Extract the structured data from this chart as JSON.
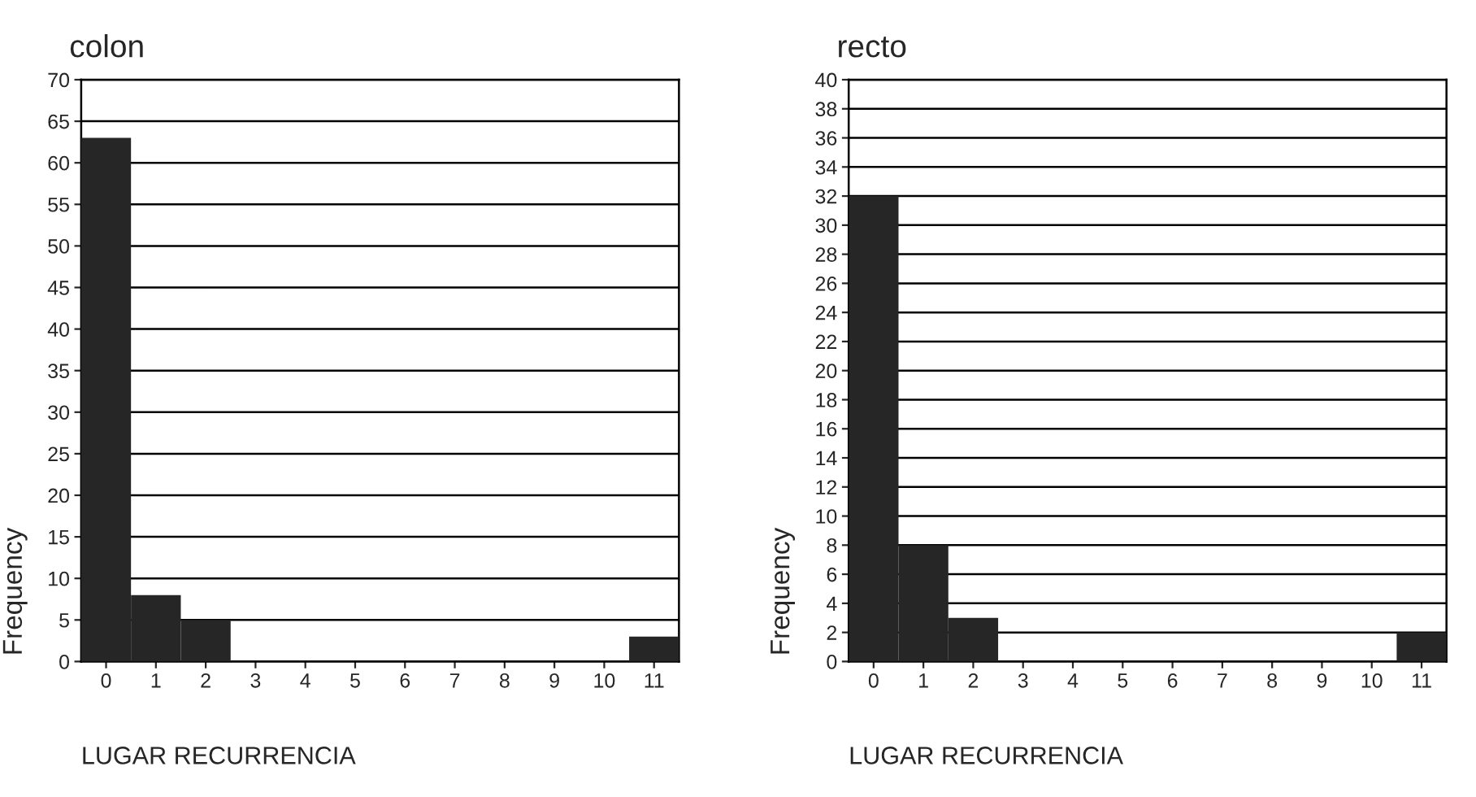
{
  "chart_data": [
    {
      "type": "bar",
      "title": "colon",
      "xlabel": "LUGAR RECURRENCIA",
      "ylabel": "Frequency",
      "categories": [
        "0",
        "1",
        "2",
        "3",
        "4",
        "5",
        "6",
        "7",
        "8",
        "9",
        "10",
        "11"
      ],
      "values": [
        63,
        8,
        5,
        0,
        0,
        0,
        0,
        0,
        0,
        0,
        0,
        3
      ],
      "color": "#262626",
      "ylim": [
        0,
        70
      ],
      "yticks": [
        0,
        5,
        10,
        15,
        20,
        25,
        30,
        35,
        40,
        45,
        50,
        55,
        60,
        65,
        70
      ],
      "grid": "y"
    },
    {
      "type": "bar",
      "title": "recto",
      "xlabel": "LUGAR RECURRENCIA",
      "ylabel": "Frequency",
      "categories": [
        "0",
        "1",
        "2",
        "3",
        "4",
        "5",
        "6",
        "7",
        "8",
        "9",
        "10",
        "11"
      ],
      "values": [
        32,
        8,
        3,
        0,
        0,
        0,
        0,
        0,
        0,
        0,
        0,
        2
      ],
      "color": "#262626",
      "ylim": [
        0,
        40
      ],
      "yticks": [
        0,
        2,
        4,
        6,
        8,
        10,
        12,
        14,
        16,
        18,
        20,
        22,
        24,
        26,
        28,
        30,
        32,
        34,
        36,
        38,
        40
      ],
      "grid": "y"
    }
  ]
}
